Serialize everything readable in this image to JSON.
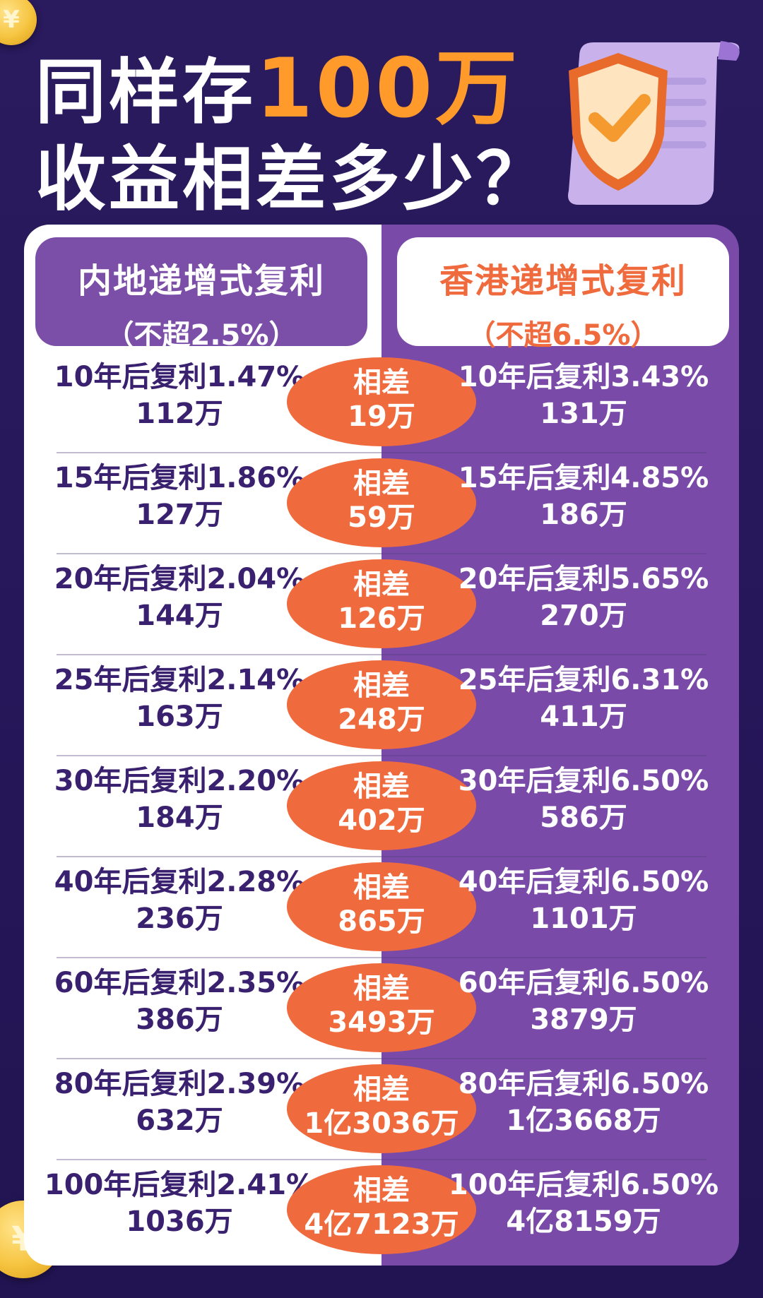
{
  "title": {
    "line1_prefix": "同样存",
    "line1_highlight": "100万",
    "line2": "收益相差多少？"
  },
  "headers": {
    "left": {
      "title": "内地递增式复利",
      "sub": "（不超2.5%）"
    },
    "right": {
      "title": "香港递增式复利",
      "sub": "（不超6.5%）"
    }
  },
  "rows": [
    {
      "left_rate": "10年后复利1.47%",
      "left_amt": "112万",
      "diff_label": "相差",
      "diff": "19万",
      "right_rate": "10年后复利3.43%",
      "right_amt": "131万"
    },
    {
      "left_rate": "15年后复利1.86%",
      "left_amt": "127万",
      "diff_label": "相差",
      "diff": "59万",
      "right_rate": "15年后复利4.85%",
      "right_amt": "186万"
    },
    {
      "left_rate": "20年后复利2.04%",
      "left_amt": "144万",
      "diff_label": "相差",
      "diff": "126万",
      "right_rate": "20年后复利5.65%",
      "right_amt": "270万"
    },
    {
      "left_rate": "25年后复利2.14%",
      "left_amt": "163万",
      "diff_label": "相差",
      "diff": "248万",
      "right_rate": "25年后复利6.31%",
      "right_amt": "411万"
    },
    {
      "left_rate": "30年后复利2.20%",
      "left_amt": "184万",
      "diff_label": "相差",
      "diff": "402万",
      "right_rate": "30年后复利6.50%",
      "right_amt": "586万"
    },
    {
      "left_rate": "40年后复利2.28%",
      "left_amt": "236万",
      "diff_label": "相差",
      "diff": "865万",
      "right_rate": "40年后复利6.50%",
      "right_amt": "1101万"
    },
    {
      "left_rate": "60年后复利2.35%",
      "left_amt": "386万",
      "diff_label": "相差",
      "diff": "3493万",
      "right_rate": "60年后复利6.50%",
      "right_amt": "3879万"
    },
    {
      "left_rate": "80年后复利2.39%",
      "left_amt": "632万",
      "diff_label": "相差",
      "diff": "1亿3036万",
      "right_rate": "80年后复利6.50%",
      "right_amt": "1亿3668万"
    },
    {
      "left_rate": "100年后复利2.41%",
      "left_amt": "1036万",
      "diff_label": "相差",
      "diff": "4亿7123万",
      "right_rate": "100年后复利6.50%",
      "right_amt": "4亿8159万"
    }
  ],
  "colors": {
    "purple": "#7a4aa8",
    "orange": "#ef6a3d",
    "title_orange": "#ff9a2b",
    "dark_text": "#3a2170"
  },
  "icons": {
    "coin": "yuan-coin-icon",
    "shield": "shield-check-icon"
  }
}
